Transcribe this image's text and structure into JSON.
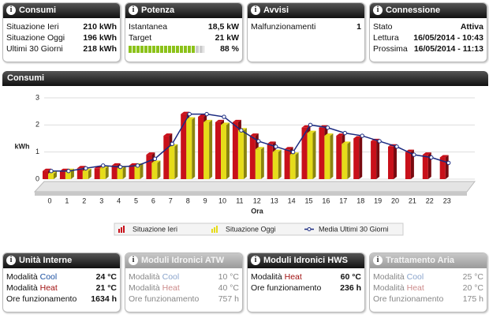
{
  "top_panels": [
    {
      "title": "Consumi",
      "rows": [
        [
          "Situazione Ieri",
          "210 kWh"
        ],
        [
          "Situazione Oggi",
          "196 kWh"
        ],
        [
          "Ultimi 30 Giorni",
          "218 kWh"
        ]
      ]
    },
    {
      "title": "Potenza",
      "rows": [
        [
          "Istantanea",
          "18,5 kW"
        ],
        [
          "Target",
          "21 kW"
        ]
      ],
      "progress": {
        "value": 88,
        "label": "88 %"
      }
    },
    {
      "title": "Avvisi",
      "rows": [
        [
          "Malfunzionamenti",
          "1"
        ]
      ]
    },
    {
      "title": "Connessione",
      "rows": [
        [
          "Stato",
          "Attiva"
        ],
        [
          "Lettura",
          "16/05/2014 - 10:43"
        ],
        [
          "Prossima",
          "16/05/2014 - 11:13"
        ]
      ]
    }
  ],
  "section_title": "Consumi",
  "chart_data": {
    "type": "bar",
    "ylabel": "kWh",
    "xlabel": "Ora",
    "categories": [
      "0",
      "1",
      "2",
      "3",
      "4",
      "5",
      "6",
      "7",
      "8",
      "9",
      "10",
      "11",
      "12",
      "13",
      "14",
      "15",
      "16",
      "17",
      "18",
      "19",
      "20",
      "21",
      "22",
      "23"
    ],
    "ylim": [
      0,
      3
    ],
    "yticks": [
      0,
      1,
      2,
      3
    ],
    "grid": true,
    "series": [
      {
        "name": "Situazione Ieri",
        "type": "bar",
        "color": "#c8101a",
        "values": [
          0.3,
          0.3,
          0.4,
          0.4,
          0.5,
          0.5,
          0.9,
          1.6,
          2.4,
          2.3,
          2.1,
          2.1,
          1.6,
          1.3,
          1.1,
          1.9,
          1.9,
          1.6,
          1.5,
          1.4,
          1.2,
          1.0,
          0.9,
          0.8
        ]
      },
      {
        "name": "Situazione Oggi",
        "type": "bar",
        "color": "#e6dc1a",
        "values": [
          0.2,
          0.3,
          0.3,
          0.4,
          0.4,
          0.5,
          0.6,
          1.2,
          2.2,
          2.1,
          2.0,
          1.8,
          1.1,
          1.0,
          0.9,
          1.7,
          1.6,
          1.3,
          null,
          null,
          null,
          null,
          null,
          null
        ]
      },
      {
        "name": "Media Ultimi 30 Giorni",
        "type": "line",
        "color": "#1a2a80",
        "values": [
          0.3,
          0.3,
          0.4,
          0.5,
          0.45,
          0.5,
          0.75,
          1.3,
          2.4,
          2.4,
          2.3,
          1.8,
          1.4,
          1.2,
          1.0,
          2.0,
          1.9,
          1.7,
          1.6,
          1.4,
          1.2,
          0.9,
          0.8,
          0.6
        ]
      }
    ]
  },
  "bottom_panels": [
    {
      "title": "Unità Interne",
      "active": true,
      "rows": [
        {
          "label": "Modalità",
          "mode": "Cool",
          "value": "24 °C"
        },
        {
          "label": "Modalità",
          "mode": "Heat",
          "value": "21 °C"
        },
        {
          "label": "Ore funzionamento",
          "value": "1634 h"
        }
      ]
    },
    {
      "title": "Moduli Idronici ATW",
      "active": false,
      "rows": [
        {
          "label": "Modalità",
          "mode": "Cool",
          "value": "10 °C"
        },
        {
          "label": "Modalità",
          "mode": "Heat",
          "value": "40 °C"
        },
        {
          "label": "Ore funzionamento",
          "value": "757 h"
        }
      ]
    },
    {
      "title": "Moduli Idronici HWS",
      "active": true,
      "rows": [
        {
          "label": "Modalità",
          "mode": "Heat",
          "value": "60 °C"
        },
        {
          "label": "Ore funzionamento",
          "value": "236 h"
        }
      ]
    },
    {
      "title": "Trattamento Aria",
      "active": false,
      "rows": [
        {
          "label": "Modalità",
          "mode": "Cool",
          "value": "25 °C"
        },
        {
          "label": "Modalità",
          "mode": "Heat",
          "value": "20 °C"
        },
        {
          "label": "Ore funzionamento",
          "value": "175 h"
        }
      ]
    }
  ]
}
